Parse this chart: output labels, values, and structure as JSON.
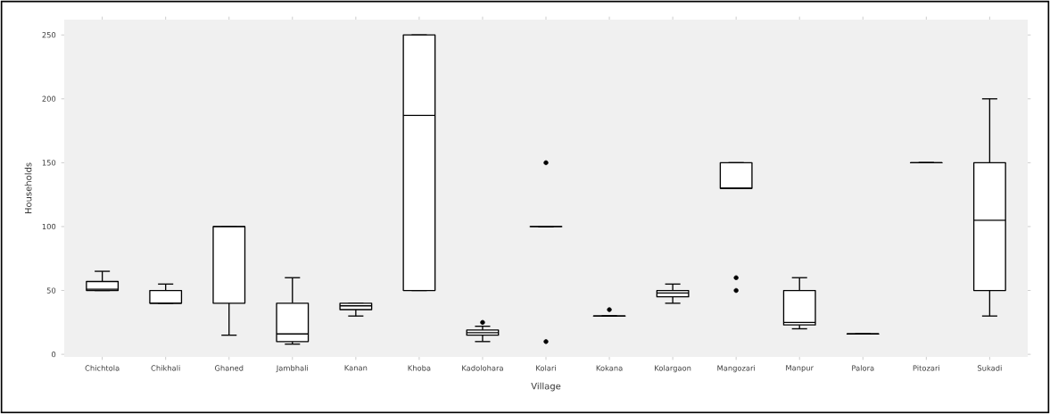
{
  "chart_data": {
    "type": "box",
    "xlabel": "Village",
    "ylabel": "Households",
    "categories": [
      "Chichtola",
      "Chikhali",
      "Ghaned",
      "Jambhali",
      "Kanan",
      "Khoba",
      "Kadolohara",
      "Kolari",
      "Kokana",
      "Kolargaon",
      "Mangozari",
      "Manpur",
      "Palora",
      "Pitozari",
      "Sukadi"
    ],
    "boxes": [
      {
        "low": 50,
        "q1": 50,
        "median": 51,
        "q3": 57,
        "high": 65
      },
      {
        "low": 40,
        "q1": 40,
        "median": 40,
        "q3": 50,
        "high": 55
      },
      {
        "low": 15,
        "q1": 40,
        "median": 100,
        "q3": 100,
        "high": 100
      },
      {
        "low": 8,
        "q1": 10,
        "median": 16,
        "q3": 40,
        "high": 60
      },
      {
        "low": 30,
        "q1": 35,
        "median": 38,
        "q3": 40,
        "high": 40
      },
      {
        "low": 50,
        "q1": 50,
        "median": 187,
        "q3": 250,
        "high": 250
      },
      {
        "low": 10,
        "q1": 15,
        "median": 17,
        "q3": 19,
        "high": 22,
        "outliers": [
          25
        ]
      },
      {
        "low": 100,
        "q1": 100,
        "median": 100,
        "q3": 100,
        "high": 100,
        "outliers": [
          150,
          10
        ]
      },
      {
        "low": 30,
        "q1": 30,
        "median": 30,
        "q3": 30,
        "high": 30,
        "outliers": [
          35
        ]
      },
      {
        "low": 40,
        "q1": 45,
        "median": 48,
        "q3": 50,
        "high": 55
      },
      {
        "low": 130,
        "q1": 130,
        "median": 130,
        "q3": 150,
        "high": 150,
        "outliers": [
          60,
          50
        ]
      },
      {
        "low": 20,
        "q1": 23,
        "median": 25,
        "q3": 50,
        "high": 60
      },
      {
        "low": 16,
        "q1": 16,
        "median": 16,
        "q3": 16,
        "high": 16
      },
      {
        "low": 150,
        "q1": 150,
        "median": 150,
        "q3": 150,
        "high": 150
      },
      {
        "low": 30,
        "q1": 50,
        "median": 105,
        "q3": 150,
        "high": 200
      }
    ],
    "ylim": [
      -2,
      262
    ],
    "yticks": [
      0,
      50,
      100,
      150,
      200,
      250
    ],
    "grid": false
  }
}
